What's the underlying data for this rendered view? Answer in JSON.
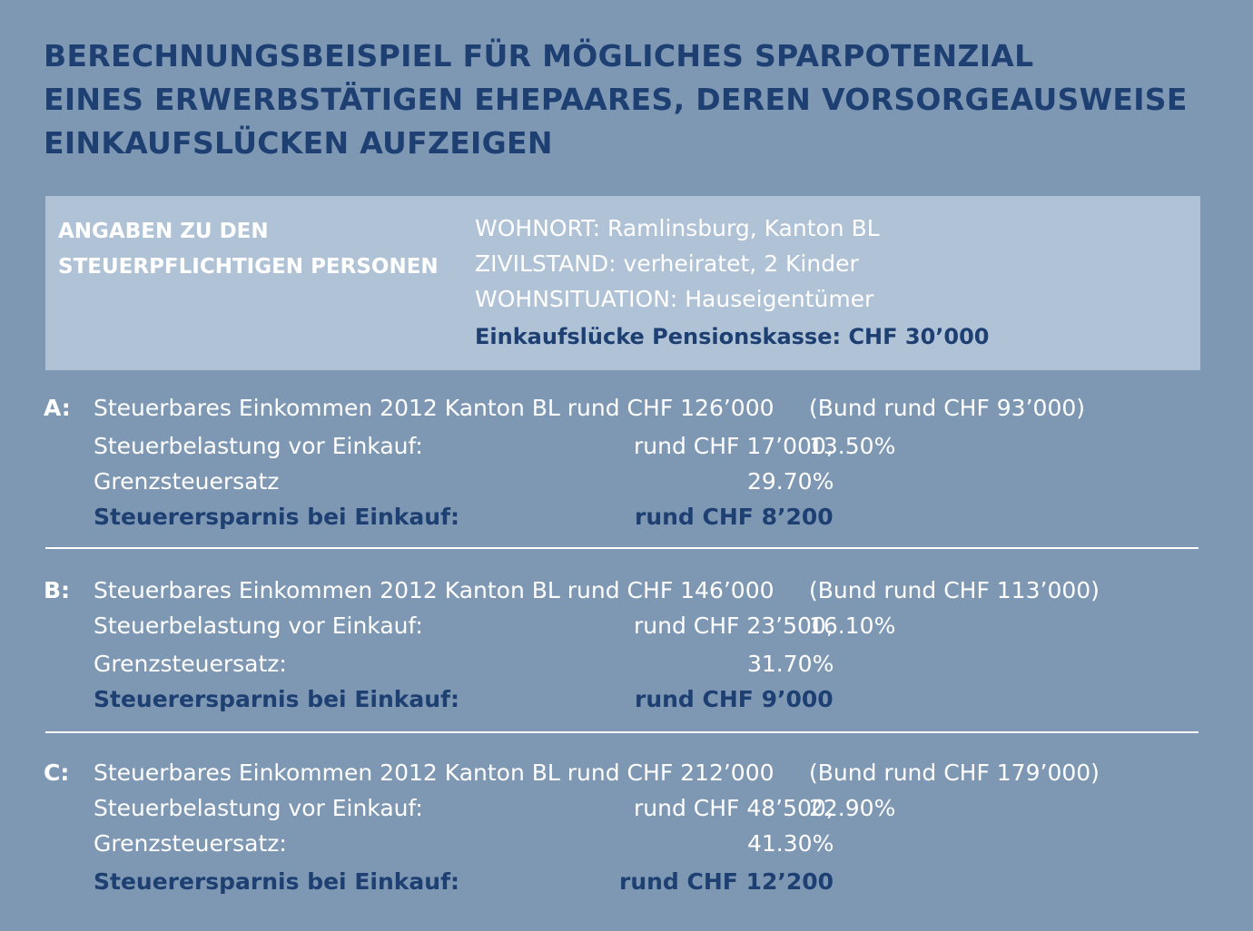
{
  "title": {
    "line1": "BERECHNUNGSBEISPIEL FÜR MÖGLICHES SPARPOTENZIAL",
    "line2": "EINES ERWERBSTÄTIGEN EHEPAARES, DEREN VORSORGEAUSWEISE",
    "line3": "EINKAUFSLÜCKEN AUFZEIGEN"
  },
  "info": {
    "label_line1": "ANGABEN ZU DEN",
    "label_line2": "STEUERPFLICHTIGEN PERSONEN",
    "wohnort": "WOHNORT: Ramlinsburg, Kanton BL",
    "zivilstand": "ZIVILSTAND: verheiratet, 2 Kinder",
    "wohnsituation": "WOHNSITUATION: Hauseigentümer",
    "einkaufsluecke": "Einkaufslücke Pensionskasse: CHF 30’000"
  },
  "examples": [
    {
      "letter": "A:",
      "income_label": "Steuerbares Einkommen 2012 Kanton BL rund CHF 126’000",
      "income_bund": "(Bund rund CHF 93’000)",
      "burden_label": "Steuerbelastung vor Einkauf:",
      "burden_value": "rund CHF 17’000,",
      "burden_percent": "13.50%",
      "marginal_label": "Grenzsteuersatz",
      "marginal_value": "29.70%",
      "saving_label": "Steuerersparnis bei Einkauf:",
      "saving_value": "rund CHF 8’200"
    },
    {
      "letter": "B:",
      "income_label": "Steuerbares Einkommen 2012 Kanton BL rund CHF 146’000",
      "income_bund": "(Bund rund CHF 113’000)",
      "burden_label": "Steuerbelastung vor Einkauf:",
      "burden_value": "rund CHF 23’500,",
      "burden_percent": "16.10%",
      "marginal_label": "Grenzsteuersatz:",
      "marginal_value": "31.70%",
      "saving_label": "Steuerersparnis bei Einkauf:",
      "saving_value": "rund CHF 9’000"
    },
    {
      "letter": "C:",
      "income_label": "Steuerbares Einkommen 2012 Kanton BL rund CHF 212’000",
      "income_bund": "(Bund rund CHF 179’000)",
      "burden_label": "Steuerbelastung vor Einkauf:",
      "burden_value": "rund CHF 48’500,",
      "burden_percent": "22.90%",
      "marginal_label": "Grenzsteuersatz:",
      "marginal_value": "41.30%",
      "saving_label": "Steuerersparnis bei Einkauf:",
      "saving_value": "rund CHF 12’200"
    }
  ],
  "colors": {
    "background": "#7e98b4",
    "infobox": "#b0c2d5",
    "dark_blue": "#1d3f72",
    "white": "#ffffff"
  }
}
